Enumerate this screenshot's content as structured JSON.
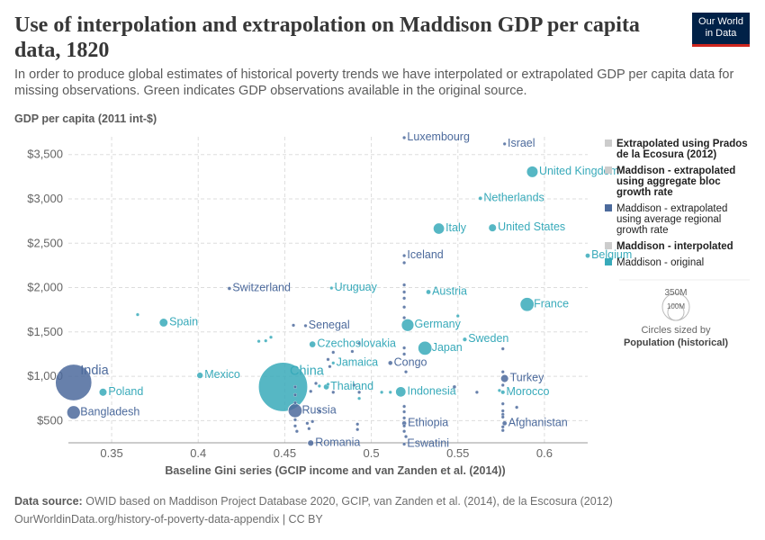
{
  "header": {
    "title": "Use of interpolation and extrapolation on Maddison GDP per capita data, 1820",
    "subtitle": "In order to produce global estimates of historical poverty trends we have interpolated or extrapolated GDP per capita data for missing observations. Green indicates GDP observations available in the original source.",
    "logo_line1": "Our World",
    "logo_line2": "in Data"
  },
  "footer": {
    "source_label": "Data source:",
    "source_text": "OWID based on Maddison Project Database 2020, GCIP, van Zanden et al. (2014), de la Escosura (2012)",
    "url": "OurWorldinData.org/history-of-poverty-data-appendix | CC BY"
  },
  "legend": {
    "items": [
      {
        "label_lines": [
          "Extrapolated using Prados",
          "de la Ecosura (2012)"
        ],
        "color": "#cccccc",
        "bold": true
      },
      {
        "label_lines": [
          "Maddison - extrapolated",
          "using aggregate bloc",
          "growth rate"
        ],
        "color": "#cccccc",
        "bold": true
      },
      {
        "label_lines": [
          "Maddison - extrapolated",
          "using average regional",
          "growth rate"
        ],
        "color": "#4c6a9c",
        "bold": false
      },
      {
        "label_lines": [
          "Maddison - interpolated"
        ],
        "color": "#cccccc",
        "bold": true
      },
      {
        "label_lines": [
          "Maddison - original"
        ],
        "color": "#38aaba",
        "bold": false
      }
    ],
    "size_max_label": "350M",
    "size_min_label": "100M",
    "size_caption": "Circles sized by",
    "size_variable": "Population (historical)"
  },
  "chart_data": {
    "type": "scatter",
    "xlabel": "Baseline Gini series (GCIP income and van Zanden et al. (2014))",
    "ylabel": "GDP per capita (2011 int-$)",
    "xlim": [
      0.325,
      0.625
    ],
    "ylim": [
      250,
      3700
    ],
    "x_ticks": [
      0.35,
      0.4,
      0.45,
      0.5,
      0.55,
      0.6
    ],
    "x_tick_labels": [
      "0.35",
      "0.4",
      "0.45",
      "0.5",
      "0.55",
      "0.6"
    ],
    "y_ticks": [
      500,
      1000,
      1500,
      2000,
      2500,
      3000,
      3500
    ],
    "y_tick_labels": [
      "$500",
      "$1,000",
      "$1,500",
      "$2,000",
      "$2,500",
      "$3,000",
      "$3,500"
    ],
    "grid": true,
    "colors": {
      "original": "#38aaba",
      "regional": "#4c6a9c"
    },
    "points": [
      {
        "label": "Luxembourg",
        "x": 0.519,
        "y": 3690,
        "cat": "regional",
        "pop": 0.2
      },
      {
        "label": "Israel",
        "x": 0.577,
        "y": 3620,
        "cat": "regional",
        "pop": 0.3
      },
      {
        "label": "United Kingdom",
        "x": 0.593,
        "y": 3306,
        "cat": "original",
        "pop": 21
      },
      {
        "label": "Netherlands",
        "x": 0.563,
        "y": 3006,
        "cat": "original",
        "pop": 2.3
      },
      {
        "label": "Italy",
        "x": 0.539,
        "y": 2665,
        "cat": "original",
        "pop": 20
      },
      {
        "label": "United States",
        "x": 0.57,
        "y": 2674,
        "cat": "original",
        "pop": 10
      },
      {
        "label": "Belgium",
        "x": 0.625,
        "y": 2360,
        "cat": "original",
        "pop": 3.4
      },
      {
        "label": "Iceland",
        "x": 0.519,
        "y": 2360,
        "cat": "regional",
        "pop": 0.05
      },
      {
        "label": "Switzerland",
        "x": 0.418,
        "y": 1990,
        "cat": "regional",
        "pop": 2
      },
      {
        "label": "Uruguay",
        "x": 0.477,
        "y": 1995,
        "cat": "original",
        "pop": 0.06
      },
      {
        "label": "Austria",
        "x": 0.533,
        "y": 1950,
        "cat": "original",
        "pop": 3.3
      },
      {
        "label": "France",
        "x": 0.59,
        "y": 1810,
        "cat": "original",
        "pop": 31
      },
      {
        "label": "Spain",
        "x": 0.38,
        "y": 1605,
        "cat": "original",
        "pop": 12
      },
      {
        "label": "Senegal",
        "x": 0.462,
        "y": 1570,
        "cat": "regional",
        "pop": 1
      },
      {
        "label": "Germany",
        "x": 0.521,
        "y": 1577,
        "cat": "original",
        "pop": 25
      },
      {
        "label": "Sweden",
        "x": 0.554,
        "y": 1415,
        "cat": "original",
        "pop": 2.6
      },
      {
        "label": "Czechoslovakia",
        "x": 0.466,
        "y": 1360,
        "cat": "original",
        "pop": 7
      },
      {
        "label": "Japan",
        "x": 0.531,
        "y": 1317,
        "cat": "original",
        "pop": 31
      },
      {
        "label": "Congo",
        "x": 0.511,
        "y": 1150,
        "cat": "regional",
        "pop": 3
      },
      {
        "label": "Jamaica",
        "x": 0.478,
        "y": 1150,
        "cat": "original",
        "pop": 0.4
      },
      {
        "label": "India",
        "x": 0.328,
        "y": 930,
        "cat": "regional",
        "pop": 209
      },
      {
        "label": "Mexico",
        "x": 0.401,
        "y": 1010,
        "cat": "original",
        "pop": 6.6
      },
      {
        "label": "Turkey",
        "x": 0.577,
        "y": 975,
        "cat": "regional",
        "pop": 10
      },
      {
        "label": "Poland",
        "x": 0.345,
        "y": 820,
        "cat": "original",
        "pop": 10
      },
      {
        "label": "China",
        "x": 0.449,
        "y": 880,
        "cat": "original",
        "pop": 381
      },
      {
        "label": "Thailand",
        "x": 0.474,
        "y": 880,
        "cat": "original",
        "pop": 4.7
      },
      {
        "label": "Indonesia",
        "x": 0.517,
        "y": 825,
        "cat": "original",
        "pop": 17
      },
      {
        "label": "Bangladesh",
        "x": 0.328,
        "y": 592,
        "cat": "regional",
        "pop": 29
      },
      {
        "label": "Russia",
        "x": 0.456,
        "y": 612,
        "cat": "regional",
        "pop": 31
      },
      {
        "label": "Morocco",
        "x": 0.576,
        "y": 820,
        "cat": "original",
        "pop": 2.5
      },
      {
        "label": "Ethiopia",
        "x": 0.519,
        "y": 470,
        "cat": "regional",
        "pop": 3.1
      },
      {
        "label": "Afghanistan",
        "x": 0.577,
        "y": 470,
        "cat": "regional",
        "pop": 3.3
      },
      {
        "label": "Romania",
        "x": 0.465,
        "y": 247,
        "cat": "regional",
        "pop": 6.4
      },
      {
        "label": "Eswatini",
        "x": 0.519,
        "y": 235,
        "cat": "regional",
        "pop": 0.1
      },
      {
        "label": "",
        "x": 0.365,
        "y": 1695,
        "cat": "original",
        "pop": 0.1
      },
      {
        "label": "",
        "x": 0.435,
        "y": 1395,
        "cat": "original",
        "pop": 0.1
      },
      {
        "label": "",
        "x": 0.439,
        "y": 1400,
        "cat": "original",
        "pop": 0.1
      },
      {
        "label": "",
        "x": 0.442,
        "y": 1440,
        "cat": "original",
        "pop": 0.1
      },
      {
        "label": "",
        "x": 0.455,
        "y": 1575,
        "cat": "regional",
        "pop": 0.5
      },
      {
        "label": "",
        "x": 0.489,
        "y": 1280,
        "cat": "regional",
        "pop": 0.3
      },
      {
        "label": "",
        "x": 0.475,
        "y": 1190,
        "cat": "regional",
        "pop": 0.3
      },
      {
        "label": "",
        "x": 0.476,
        "y": 1110,
        "cat": "regional",
        "pop": 0.3
      },
      {
        "label": "",
        "x": 0.478,
        "y": 1270,
        "cat": "regional",
        "pop": 0.3
      },
      {
        "label": "",
        "x": 0.493,
        "y": 1370,
        "cat": "regional",
        "pop": 0.3
      },
      {
        "label": "",
        "x": 0.519,
        "y": 2280,
        "cat": "regional",
        "pop": 0.3
      },
      {
        "label": "",
        "x": 0.519,
        "y": 2030,
        "cat": "regional",
        "pop": 0.3
      },
      {
        "label": "",
        "x": 0.519,
        "y": 1950,
        "cat": "regional",
        "pop": 0.3
      },
      {
        "label": "",
        "x": 0.519,
        "y": 1880,
        "cat": "regional",
        "pop": 0.3
      },
      {
        "label": "",
        "x": 0.519,
        "y": 1780,
        "cat": "regional",
        "pop": 0.3
      },
      {
        "label": "",
        "x": 0.519,
        "y": 1660,
        "cat": "regional",
        "pop": 0.5
      },
      {
        "label": "",
        "x": 0.519,
        "y": 1320,
        "cat": "regional",
        "pop": 0.5
      },
      {
        "label": "",
        "x": 0.519,
        "y": 1250,
        "cat": "regional",
        "pop": 0.3
      },
      {
        "label": "",
        "x": 0.52,
        "y": 1050,
        "cat": "regional",
        "pop": 0.3
      },
      {
        "label": "",
        "x": 0.55,
        "y": 1680,
        "cat": "original",
        "pop": 0.2
      },
      {
        "label": "",
        "x": 0.576,
        "y": 1310,
        "cat": "regional",
        "pop": 0.3
      },
      {
        "label": "",
        "x": 0.576,
        "y": 1050,
        "cat": "regional",
        "pop": 0.3
      },
      {
        "label": "",
        "x": 0.576,
        "y": 900,
        "cat": "regional",
        "pop": 0.5
      },
      {
        "label": "",
        "x": 0.576,
        "y": 690,
        "cat": "regional",
        "pop": 0.3
      },
      {
        "label": "",
        "x": 0.576,
        "y": 610,
        "cat": "regional",
        "pop": 0.3
      },
      {
        "label": "",
        "x": 0.576,
        "y": 570,
        "cat": "regional",
        "pop": 0.3
      },
      {
        "label": "",
        "x": 0.576,
        "y": 540,
        "cat": "regional",
        "pop": 0.3
      },
      {
        "label": "",
        "x": 0.576,
        "y": 430,
        "cat": "regional",
        "pop": 0.3
      },
      {
        "label": "",
        "x": 0.576,
        "y": 390,
        "cat": "regional",
        "pop": 0.3
      },
      {
        "label": "",
        "x": 0.561,
        "y": 820,
        "cat": "regional",
        "pop": 0.3
      },
      {
        "label": "",
        "x": 0.548,
        "y": 880,
        "cat": "regional",
        "pop": 2
      },
      {
        "label": "",
        "x": 0.584,
        "y": 650,
        "cat": "regional",
        "pop": 0.3
      },
      {
        "label": "",
        "x": 0.574,
        "y": 840,
        "cat": "original",
        "pop": 0.3
      },
      {
        "label": "",
        "x": 0.511,
        "y": 820,
        "cat": "original",
        "pop": 1
      },
      {
        "label": "",
        "x": 0.519,
        "y": 660,
        "cat": "regional",
        "pop": 1
      },
      {
        "label": "",
        "x": 0.519,
        "y": 600,
        "cat": "regional",
        "pop": 0.5
      },
      {
        "label": "",
        "x": 0.519,
        "y": 530,
        "cat": "regional",
        "pop": 1.5
      },
      {
        "label": "",
        "x": 0.519,
        "y": 440,
        "cat": "regional",
        "pop": 1.5
      },
      {
        "label": "",
        "x": 0.519,
        "y": 380,
        "cat": "regional",
        "pop": 0.5
      },
      {
        "label": "",
        "x": 0.52,
        "y": 320,
        "cat": "regional",
        "pop": 0.3
      },
      {
        "label": "",
        "x": 0.456,
        "y": 880,
        "cat": "regional",
        "pop": 0.5
      },
      {
        "label": "",
        "x": 0.456,
        "y": 790,
        "cat": "regional",
        "pop": 0.5
      },
      {
        "label": "",
        "x": 0.456,
        "y": 700,
        "cat": "regional",
        "pop": 0.5
      },
      {
        "label": "",
        "x": 0.456,
        "y": 510,
        "cat": "regional",
        "pop": 0.5
      },
      {
        "label": "",
        "x": 0.456,
        "y": 440,
        "cat": "regional",
        "pop": 0.5
      },
      {
        "label": "",
        "x": 0.457,
        "y": 380,
        "cat": "regional",
        "pop": 0.5
      },
      {
        "label": "",
        "x": 0.463,
        "y": 470,
        "cat": "regional",
        "pop": 0.5
      },
      {
        "label": "",
        "x": 0.466,
        "y": 490,
        "cat": "regional",
        "pop": 0.5
      },
      {
        "label": "",
        "x": 0.464,
        "y": 410,
        "cat": "regional",
        "pop": 0.3
      },
      {
        "label": "",
        "x": 0.47,
        "y": 610,
        "cat": "regional",
        "pop": 0.3
      },
      {
        "label": "",
        "x": 0.478,
        "y": 820,
        "cat": "regional",
        "pop": 0.3
      },
      {
        "label": "",
        "x": 0.492,
        "y": 460,
        "cat": "regional",
        "pop": 0.3
      },
      {
        "label": "",
        "x": 0.492,
        "y": 400,
        "cat": "regional",
        "pop": 0.3
      },
      {
        "label": "",
        "x": 0.49,
        "y": 900,
        "cat": "regional",
        "pop": 0.3
      },
      {
        "label": "",
        "x": 0.493,
        "y": 820,
        "cat": "regional",
        "pop": 1
      },
      {
        "label": "",
        "x": 0.493,
        "y": 750,
        "cat": "original",
        "pop": 0.3
      },
      {
        "label": "",
        "x": 0.475,
        "y": 910,
        "cat": "original",
        "pop": 0.3
      },
      {
        "label": "",
        "x": 0.47,
        "y": 890,
        "cat": "original",
        "pop": 0.3
      },
      {
        "label": "",
        "x": 0.465,
        "y": 830,
        "cat": "regional",
        "pop": 0.3
      },
      {
        "label": "",
        "x": 0.468,
        "y": 920,
        "cat": "regional",
        "pop": 0.3
      },
      {
        "label": "",
        "x": 0.506,
        "y": 820,
        "cat": "original",
        "pop": 0.3
      }
    ]
  }
}
